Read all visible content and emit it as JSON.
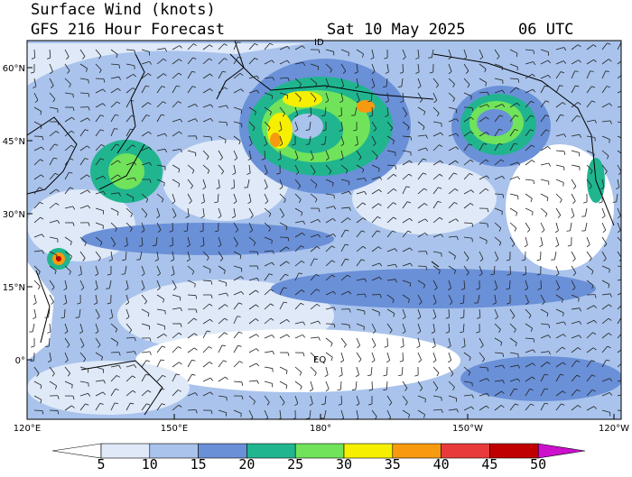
{
  "header": {
    "title": "Surface Wind (knots)",
    "subtitle": "GFS 216 Hour Forecast",
    "date": "Sat 10 May 2025",
    "time": "06 UTC"
  },
  "lat_labels": [
    "60°N",
    "45°N",
    "30°N",
    "15°N",
    "0°"
  ],
  "lon_labels": [
    "120°E",
    "150°E",
    "180°",
    "150°W",
    "120°W"
  ],
  "map_labels": [
    "ID",
    "EQ"
  ],
  "colorbar": {
    "levels": [
      5,
      10,
      15,
      20,
      25,
      30,
      35,
      40,
      45,
      50
    ],
    "colors": [
      "#ffffff",
      "#dfe9f8",
      "#a9c3ec",
      "#6a90d8",
      "#20b58f",
      "#70e35a",
      "#f6ef00",
      "#f89a10",
      "#e83a3a",
      "#c00000",
      "#cc10cc"
    ]
  }
}
